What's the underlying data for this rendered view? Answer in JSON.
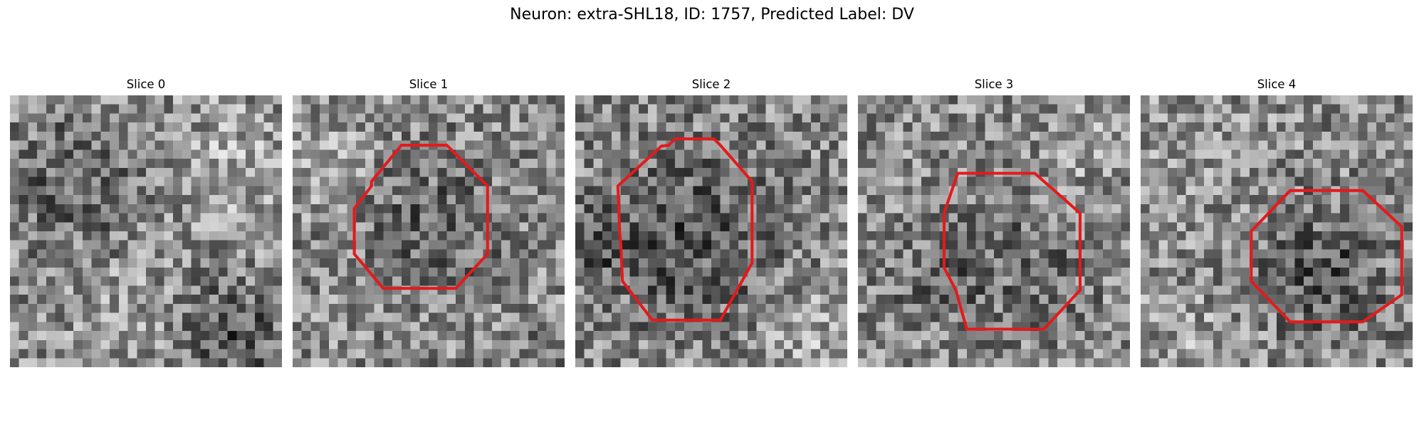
{
  "figure": {
    "title": "Neuron: extra-SHL18, ID: 1757, Predicted Label: DV"
  },
  "colors": {
    "contour": "#e31a1c",
    "background": "#ffffff"
  },
  "image_grid": {
    "rows": 30,
    "cols": 30,
    "colormap": "gray"
  },
  "slices": [
    {
      "title": "Slice 0",
      "has_roi": false,
      "roi": []
    },
    {
      "title": "Slice 1",
      "has_roi": true,
      "roi": [
        [
          12,
          5.5
        ],
        [
          17,
          5.5
        ],
        [
          21.5,
          10
        ],
        [
          21.5,
          17.5
        ],
        [
          18,
          21.3
        ],
        [
          10,
          21.3
        ],
        [
          6.8,
          17.5
        ],
        [
          6.8,
          12.5
        ],
        [
          8.7,
          10
        ],
        [
          8.7,
          9.5
        ]
      ]
    },
    {
      "title": "Slice 2",
      "has_roi": true,
      "roi": [
        [
          11,
          4.8
        ],
        [
          15.3,
          4.8
        ],
        [
          16,
          5.5
        ],
        [
          19.5,
          9.5
        ],
        [
          19.5,
          18.5
        ],
        [
          16,
          24.8
        ],
        [
          8.5,
          24.8
        ],
        [
          5.2,
          20.5
        ],
        [
          5,
          16
        ],
        [
          4.9,
          15.2
        ],
        [
          4.7,
          10
        ],
        [
          9.5,
          5.6
        ],
        [
          10.3,
          5.5
        ]
      ]
    },
    {
      "title": "Slice 3",
      "has_roi": true,
      "roi": [
        [
          11,
          8.6
        ],
        [
          19.5,
          8.6
        ],
        [
          24.5,
          13
        ],
        [
          24.5,
          21.5
        ],
        [
          20.5,
          25.8
        ],
        [
          12,
          25.8
        ],
        [
          10.8,
          21.5
        ],
        [
          9.5,
          19
        ],
        [
          9.5,
          13
        ]
      ]
    },
    {
      "title": "Slice 4",
      "has_roi": true,
      "roi": [
        [
          16.5,
          10.5
        ],
        [
          24.5,
          10.5
        ],
        [
          28.8,
          14.5
        ],
        [
          28.8,
          22
        ],
        [
          24.5,
          25
        ],
        [
          16.5,
          25
        ],
        [
          12.2,
          20.5
        ],
        [
          12.2,
          15
        ]
      ]
    }
  ]
}
